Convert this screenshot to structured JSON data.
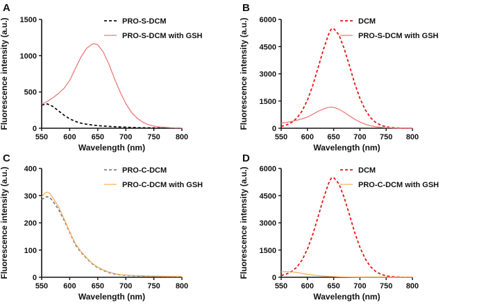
{
  "chart_data": [
    {
      "panel": "A",
      "type": "line",
      "xlabel": "Wavelength (nm)",
      "ylabel": "Fluorescence intensity (a.u.)",
      "xlim": [
        550,
        800
      ],
      "ylim": [
        0,
        1500
      ],
      "xticks": [
        "550",
        "600",
        "650",
        "700",
        "750",
        "800"
      ],
      "yticks": [
        "0",
        "500",
        "1000",
        "1500"
      ],
      "x": [
        550,
        560,
        570,
        580,
        590,
        600,
        610,
        620,
        630,
        640,
        645,
        650,
        660,
        670,
        680,
        690,
        700,
        710,
        720,
        730,
        740,
        750,
        760,
        770,
        780,
        790,
        800
      ],
      "series": [
        {
          "name": "PRO-S-DCM",
          "color": "#111111",
          "dash": true,
          "values": [
            320,
            335,
            300,
            240,
            180,
            130,
            95,
            70,
            55,
            45,
            40,
            36,
            30,
            25,
            21,
            17,
            14,
            11,
            9,
            7,
            6,
            5,
            4,
            3,
            3,
            2,
            2
          ]
        },
        {
          "name": "PRO-S-DCM with GSH",
          "color": "#f07878",
          "dash": false,
          "values": [
            330,
            370,
            420,
            480,
            550,
            660,
            820,
            980,
            1100,
            1160,
            1165,
            1150,
            1050,
            880,
            680,
            500,
            340,
            220,
            140,
            85,
            50,
            30,
            18,
            12,
            8,
            5,
            4
          ]
        }
      ]
    },
    {
      "panel": "B",
      "type": "line",
      "xlabel": "Wavelength (nm)",
      "ylabel": "Fluorescence intensity (a.u.)",
      "xlim": [
        550,
        800
      ],
      "ylim": [
        0,
        6000
      ],
      "xticks": [
        "550",
        "600",
        "650",
        "700",
        "750",
        "800"
      ],
      "yticks": [
        "0",
        "1500",
        "3000",
        "4500",
        "6000"
      ],
      "x": [
        550,
        560,
        570,
        580,
        590,
        600,
        610,
        620,
        630,
        640,
        645,
        650,
        660,
        670,
        680,
        690,
        700,
        710,
        720,
        730,
        740,
        750,
        760,
        770,
        780,
        790,
        800
      ],
      "series": [
        {
          "name": "DCM",
          "color": "#ee1111",
          "dash": true,
          "values": [
            100,
            180,
            320,
            560,
            960,
            1550,
            2350,
            3300,
            4300,
            5150,
            5450,
            5500,
            5150,
            4400,
            3450,
            2480,
            1650,
            1020,
            590,
            320,
            165,
            82,
            40,
            19,
            9,
            4,
            2
          ]
        },
        {
          "name": "PRO-S-DCM with GSH",
          "color": "#f07878",
          "dash": false,
          "values": [
            280,
            320,
            380,
            440,
            520,
            620,
            770,
            930,
            1060,
            1150,
            1165,
            1150,
            1050,
            880,
            680,
            500,
            340,
            220,
            140,
            85,
            50,
            30,
            18,
            12,
            8,
            5,
            4
          ]
        }
      ]
    },
    {
      "panel": "C",
      "type": "line",
      "xlabel": "Wavelength (nm)",
      "ylabel": "Fluorescence intensity (a.u.)",
      "xlim": [
        550,
        800
      ],
      "ylim": [
        0,
        400
      ],
      "xticks": [
        "550",
        "600",
        "650",
        "700",
        "750",
        "800"
      ],
      "yticks": [
        "0",
        "100",
        "200",
        "300",
        "400"
      ],
      "x": [
        550,
        555,
        560,
        565,
        570,
        580,
        590,
        600,
        610,
        620,
        630,
        640,
        650,
        660,
        670,
        680,
        690,
        700,
        720,
        740,
        760,
        780,
        800
      ],
      "series": [
        {
          "name": "PRO-C-DCM",
          "color": "#7a7f8c",
          "dash": true,
          "values": [
            285,
            293,
            296,
            292,
            280,
            250,
            210,
            165,
            120,
            92,
            70,
            50,
            35,
            25,
            17,
            12,
            9,
            7,
            5,
            4,
            3,
            3,
            2
          ]
        },
        {
          "name": "PRO-C-DCM with GSH",
          "color": "#f5b25a",
          "dash": false,
          "values": [
            295,
            308,
            313,
            308,
            292,
            260,
            215,
            168,
            124,
            95,
            72,
            52,
            37,
            27,
            19,
            14,
            10,
            8,
            6,
            5,
            4,
            3,
            3
          ]
        }
      ]
    },
    {
      "panel": "D",
      "type": "line",
      "xlabel": "Wavelength (nm)",
      "ylabel": "Fluorescence intensity (a.u.)",
      "xlim": [
        550,
        800
      ],
      "ylim": [
        0,
        6000
      ],
      "xticks": [
        "550",
        "600",
        "650",
        "700",
        "750",
        "800"
      ],
      "yticks": [
        "0",
        "1500",
        "3000",
        "4500",
        "6000"
      ],
      "x": [
        550,
        560,
        570,
        580,
        590,
        600,
        610,
        620,
        630,
        640,
        645,
        650,
        660,
        670,
        680,
        690,
        700,
        710,
        720,
        730,
        740,
        750,
        760,
        770,
        780,
        790,
        800
      ],
      "series": [
        {
          "name": "DCM",
          "color": "#ee1111",
          "dash": true,
          "values": [
            100,
            180,
            320,
            560,
            960,
            1550,
            2350,
            3300,
            4300,
            5150,
            5450,
            5500,
            5150,
            4400,
            3450,
            2480,
            1650,
            1020,
            590,
            320,
            165,
            82,
            40,
            19,
            9,
            4,
            2
          ]
        },
        {
          "name": "PRO-C-DCM with GSH",
          "color": "#f5b25a",
          "dash": false,
          "values": [
            300,
            315,
            300,
            260,
            210,
            165,
            125,
            95,
            72,
            52,
            44,
            37,
            27,
            19,
            14,
            10,
            8,
            6,
            5,
            4,
            4,
            3,
            3,
            3,
            3,
            3,
            3
          ]
        }
      ]
    }
  ]
}
